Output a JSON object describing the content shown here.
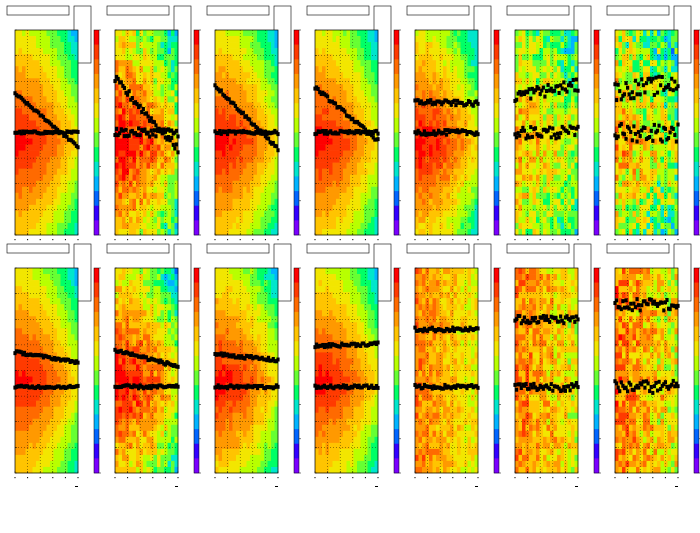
{
  "footer": {
    "text": ""
  },
  "palette": [
    "#ff0000",
    "#ff3a00",
    "#ff6a00",
    "#ff9900",
    "#ffc400",
    "#f2e600",
    "#b8ff00",
    "#66ff33",
    "#00ff66",
    "#00e6cc",
    "#00b3ff",
    "#0066ff",
    "#3300ff",
    "#7a00ff"
  ],
  "chart_data": [
    {
      "type": "heatmap",
      "row": 0,
      "col": 0,
      "noise": 0.02,
      "lines": [
        {
          "from": 0.69,
          "to": 0.43
        },
        {
          "from": 0.5,
          "to": 0.5
        }
      ],
      "line_noise": 0.006
    },
    {
      "type": "heatmap",
      "row": 0,
      "col": 1,
      "noise": 0.18,
      "lines": [
        {
          "from": 0.76,
          "to": 0.42
        },
        {
          "from": 0.5,
          "to": 0.5
        }
      ],
      "line_noise": 0.02
    },
    {
      "type": "heatmap",
      "row": 0,
      "col": 2,
      "noise": 0.04,
      "lines": [
        {
          "from": 0.73,
          "to": 0.42
        },
        {
          "from": 0.5,
          "to": 0.5
        }
      ],
      "line_noise": 0.008
    },
    {
      "type": "heatmap",
      "row": 0,
      "col": 3,
      "noise": 0.03,
      "lines": [
        {
          "from": 0.72,
          "to": 0.46
        },
        {
          "from": 0.5,
          "to": 0.5
        }
      ],
      "line_noise": 0.008
    },
    {
      "type": "heatmap",
      "row": 0,
      "col": 4,
      "noise": 0.08,
      "lines": [
        {
          "from": 0.65,
          "to": 0.64
        },
        {
          "from": 0.5,
          "to": 0.5
        }
      ],
      "line_noise": 0.012
    },
    {
      "type": "heatmap",
      "row": 0,
      "col": 5,
      "noise": 0.22,
      "lines": [
        {
          "from": 0.68,
          "to": 0.73
        },
        {
          "from": 0.5,
          "to": 0.5
        }
      ],
      "line_noise": 0.03
    },
    {
      "type": "heatmap",
      "row": 0,
      "col": 6,
      "noise": 0.28,
      "lines": [
        {
          "from": 0.7,
          "to": 0.74
        },
        {
          "from": 0.5,
          "to": 0.5
        }
      ],
      "line_noise": 0.045
    },
    {
      "type": "heatmap",
      "row": 1,
      "col": 0,
      "noise": 0.02,
      "lines": [
        {
          "from": 0.59,
          "to": 0.54
        },
        {
          "from": 0.42,
          "to": 0.42
        }
      ],
      "line_noise": 0.006
    },
    {
      "type": "heatmap",
      "row": 1,
      "col": 1,
      "noise": 0.16,
      "lines": [
        {
          "from": 0.6,
          "to": 0.52
        },
        {
          "from": 0.42,
          "to": 0.42
        }
      ],
      "line_noise": 0.008
    },
    {
      "type": "heatmap",
      "row": 1,
      "col": 2,
      "noise": 0.06,
      "lines": [
        {
          "from": 0.58,
          "to": 0.55
        },
        {
          "from": 0.42,
          "to": 0.42
        }
      ],
      "line_noise": 0.008
    },
    {
      "type": "heatmap",
      "row": 1,
      "col": 3,
      "noise": 0.03,
      "lines": [
        {
          "from": 0.62,
          "to": 0.63
        },
        {
          "from": 0.42,
          "to": 0.42
        }
      ],
      "line_noise": 0.008
    },
    {
      "type": "heatmap",
      "row": 1,
      "col": 4,
      "noise": 0.14,
      "lines": [
        {
          "from": 0.7,
          "to": 0.7
        },
        {
          "from": 0.42,
          "to": 0.42
        }
      ],
      "line_noise": 0.01
    },
    {
      "type": "heatmap",
      "row": 1,
      "col": 5,
      "noise": 0.2,
      "lines": [
        {
          "from": 0.75,
          "to": 0.75
        },
        {
          "from": 0.42,
          "to": 0.42
        }
      ],
      "line_noise": 0.02
    },
    {
      "type": "heatmap",
      "row": 1,
      "col": 6,
      "noise": 0.24,
      "lines": [
        {
          "from": 0.82,
          "to": 0.82
        },
        {
          "from": 0.42,
          "to": 0.42
        }
      ],
      "line_noise": 0.03
    }
  ]
}
